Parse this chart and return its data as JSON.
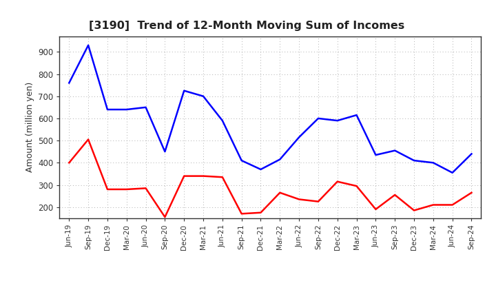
{
  "title": "[3190]  Trend of 12-Month Moving Sum of Incomes",
  "ylabel": "Amount (million yen)",
  "x_labels": [
    "Jun-19",
    "Sep-19",
    "Dec-19",
    "Mar-20",
    "Jun-20",
    "Sep-20",
    "Dec-20",
    "Mar-21",
    "Jun-21",
    "Sep-21",
    "Dec-21",
    "Mar-22",
    "Jun-22",
    "Sep-22",
    "Dec-22",
    "Mar-23",
    "Jun-23",
    "Sep-23",
    "Dec-23",
    "Mar-24",
    "Jun-24",
    "Sep-24"
  ],
  "ordinary_income": [
    760,
    930,
    640,
    640,
    650,
    450,
    725,
    700,
    590,
    410,
    370,
    415,
    515,
    600,
    590,
    615,
    435,
    455,
    410,
    400,
    355,
    440
  ],
  "net_income": [
    400,
    505,
    280,
    280,
    285,
    155,
    340,
    340,
    335,
    170,
    175,
    265,
    235,
    225,
    315,
    295,
    190,
    255,
    185,
    210,
    210,
    265
  ],
  "ordinary_income_color": "#0000FF",
  "net_income_color": "#FF0000",
  "background_color": "#FFFFFF",
  "grid_color": "#999999",
  "ylim": [
    150,
    970
  ],
  "yticks": [
    200,
    300,
    400,
    500,
    600,
    700,
    800,
    900
  ],
  "line_width": 1.8
}
